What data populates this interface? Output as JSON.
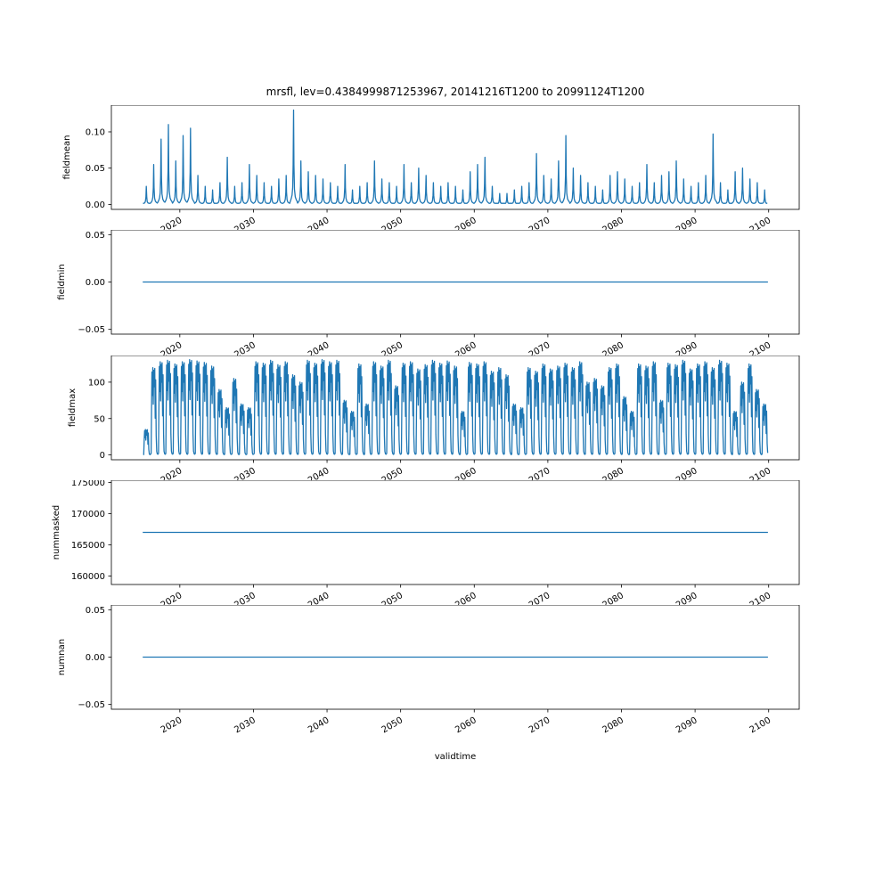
{
  "figure": {
    "title": "mrsfl, lev=0.4384999871253967, 20141216T1200 to 20991124T1200",
    "xlabel": "validtime",
    "line_color": "#1f77b4",
    "background": "#ffffff"
  },
  "xaxis": {
    "label": "validtime",
    "tick_labels": [
      "2020",
      "2030",
      "2040",
      "2050",
      "2060",
      "2070",
      "2080",
      "2090",
      "2100"
    ],
    "tick_values": [
      2020,
      2030,
      2040,
      2050,
      2060,
      2070,
      2080,
      2090,
      2100
    ],
    "xlim": [
      2010.7,
      2104.15
    ],
    "data_start": 2014.96,
    "data_end": 2099.9
  },
  "chart_data": [
    {
      "type": "line",
      "name": "fieldmean",
      "ylabel": "fieldmean",
      "ytick_labels": [
        "0.00",
        "0.05",
        "0.10"
      ],
      "ytick_values": [
        0.0,
        0.05,
        0.1
      ],
      "ylim": [
        -0.0068,
        0.1368
      ],
      "series_kind": "annual_spikes",
      "start_year": 2015,
      "annual_peaks": [
        0.025,
        0.055,
        0.09,
        0.11,
        0.06,
        0.095,
        0.105,
        0.04,
        0.025,
        0.02,
        0.03,
        0.065,
        0.025,
        0.03,
        0.055,
        0.04,
        0.03,
        0.025,
        0.035,
        0.04,
        0.13,
        0.06,
        0.045,
        0.04,
        0.035,
        0.03,
        0.025,
        0.055,
        0.02,
        0.025,
        0.03,
        0.06,
        0.035,
        0.03,
        0.025,
        0.055,
        0.03,
        0.05,
        0.04,
        0.03,
        0.025,
        0.03,
        0.025,
        0.02,
        0.045,
        0.055,
        0.065,
        0.025,
        0.015,
        0.015,
        0.02,
        0.025,
        0.03,
        0.07,
        0.04,
        0.035,
        0.06,
        0.095,
        0.05,
        0.04,
        0.03,
        0.025,
        0.02,
        0.04,
        0.045,
        0.035,
        0.025,
        0.03,
        0.055,
        0.03,
        0.04,
        0.045,
        0.06,
        0.035,
        0.025,
        0.03,
        0.04,
        0.097,
        0.03,
        0.02,
        0.045,
        0.05,
        0.035,
        0.03,
        0.02
      ]
    },
    {
      "type": "line",
      "name": "fieldmin",
      "ylabel": "fieldmin",
      "ytick_labels": [
        "−0.05",
        "0.00",
        "0.05"
      ],
      "ytick_values": [
        -0.05,
        0.0,
        0.05
      ],
      "ylim": [
        -0.055,
        0.055
      ],
      "series_kind": "constant",
      "constant_value": 0.0
    },
    {
      "type": "line",
      "name": "fieldmax",
      "ylabel": "fieldmax",
      "ytick_labels": [
        "0",
        "50",
        "100"
      ],
      "ytick_values": [
        0,
        50,
        100
      ],
      "ylim": [
        -6.6,
        136.6
      ],
      "series_kind": "annual_pulses",
      "start_year": 2015,
      "annual_peaks": [
        35,
        120,
        128,
        130,
        125,
        128,
        131,
        129,
        127,
        122,
        90,
        65,
        105,
        70,
        65,
        128,
        126,
        130,
        124,
        128,
        110,
        100,
        130,
        126,
        131,
        128,
        130,
        75,
        60,
        125,
        70,
        128,
        122,
        130,
        95,
        126,
        128,
        118,
        124,
        130,
        126,
        129,
        122,
        60,
        127,
        125,
        128,
        115,
        120,
        110,
        70,
        65,
        120,
        115,
        125,
        118,
        122,
        126,
        120,
        128,
        100,
        105,
        95,
        120,
        125,
        80,
        60,
        125,
        122,
        128,
        75,
        126,
        124,
        130,
        118,
        125,
        128,
        120,
        130,
        126,
        60,
        100,
        125,
        90,
        70
      ]
    },
    {
      "type": "line",
      "name": "nummasked",
      "ylabel": "nummasked",
      "ytick_labels": [
        "160000",
        "165000",
        "170000",
        "175000"
      ],
      "ytick_values": [
        160000,
        165000,
        170000,
        175000
      ],
      "ylim": [
        158650,
        175350
      ],
      "series_kind": "constant",
      "constant_value": 167000
    },
    {
      "type": "line",
      "name": "numnan",
      "ylabel": "numnan",
      "ytick_labels": [
        "−0.05",
        "0.00",
        "0.05"
      ],
      "ytick_values": [
        -0.05,
        0.0,
        0.05
      ],
      "ylim": [
        -0.055,
        0.055
      ],
      "series_kind": "constant",
      "constant_value": 0.0
    }
  ]
}
